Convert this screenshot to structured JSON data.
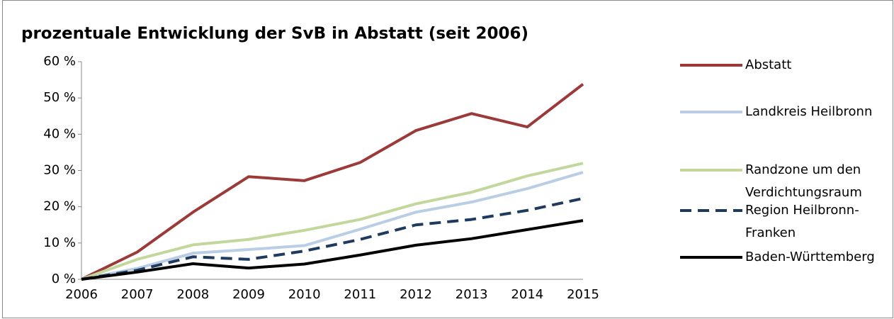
{
  "chart_data": {
    "type": "line",
    "title": "prozentuale Entwicklung der SvB in Abstatt (seit 2006)",
    "categories": [
      "2006",
      "2007",
      "2008",
      "2009",
      "2010",
      "2011",
      "2012",
      "2013",
      "2014",
      "2015"
    ],
    "ylim": [
      0,
      60
    ],
    "yticks": [
      {
        "value": 0,
        "label": "0 %"
      },
      {
        "value": 10,
        "label": "10 %"
      },
      {
        "value": 20,
        "label": "20 %"
      },
      {
        "value": 30,
        "label": "30 %"
      },
      {
        "value": 40,
        "label": "40 %"
      },
      {
        "value": 50,
        "label": "50 %"
      },
      {
        "value": 60,
        "label": "60 %"
      }
    ],
    "grid": false,
    "legend": "right",
    "series": [
      {
        "name": "Abstatt",
        "color": "#9b3a38",
        "values": [
          0,
          7.5,
          18.5,
          28.3,
          27.2,
          32.2,
          41,
          45.7,
          42,
          53.8
        ]
      },
      {
        "name": "Landkreis Heilbronn",
        "color": "#b9cde5",
        "values": [
          0,
          3,
          7.2,
          8.2,
          9.3,
          13.8,
          18.5,
          21.3,
          25,
          29.5
        ]
      },
      {
        "name": "Randzone um den Verdichtungsraum",
        "color": "#c3d69b",
        "values": [
          0,
          5.5,
          9.5,
          11,
          13.5,
          16.5,
          20.8,
          24,
          28.5,
          32
        ]
      },
      {
        "name": "Region Heilbronn-Franken",
        "color": "#1f3a5f",
        "dashed": true,
        "values": [
          0,
          2.5,
          6.2,
          5.5,
          7.8,
          11,
          15,
          16.5,
          19,
          22.3
        ]
      },
      {
        "name": "Baden-Württemberg",
        "color": "#000000",
        "values": [
          0,
          2,
          4.3,
          3.1,
          4.2,
          6.7,
          9.4,
          11.2,
          13.7,
          16.2
        ]
      }
    ]
  }
}
